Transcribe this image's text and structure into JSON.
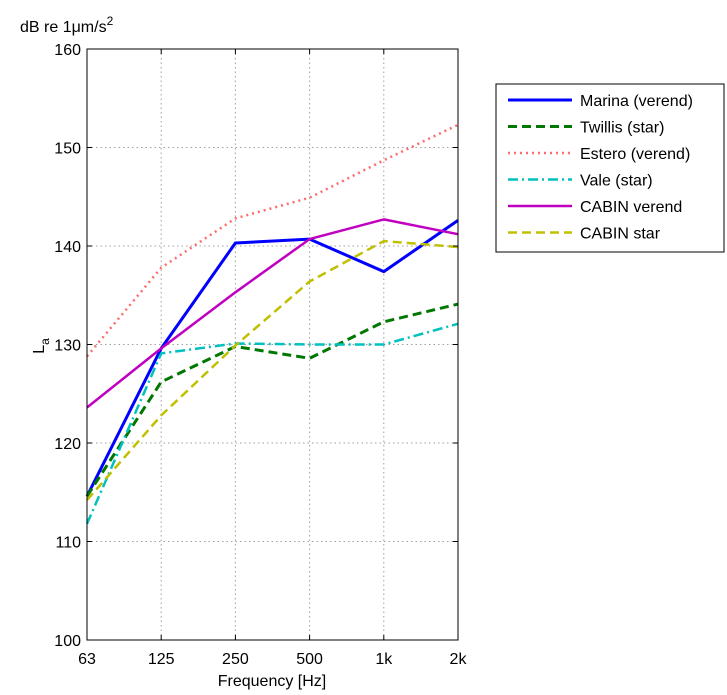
{
  "chart_data": {
    "type": "line",
    "title": "",
    "unit_label": "dB re 1μm/s",
    "unit_superscript": "2",
    "xlabel": "Frequency [Hz]",
    "ylabel_main": "L",
    "ylabel_sub": "a",
    "categories": [
      "63",
      "125",
      "250",
      "500",
      "1k",
      "2k"
    ],
    "ylim": [
      100,
      160
    ],
    "yticks": [
      100,
      110,
      120,
      130,
      140,
      150,
      160
    ],
    "grid": true,
    "legend_position": "outside-right",
    "series": [
      {
        "name": "Marina (verend)",
        "color": "#0000ff",
        "dash": "solid",
        "width": 3,
        "values": [
          114.6,
          129.6,
          140.3,
          140.7,
          137.4,
          142.6
        ]
      },
      {
        "name": "Twillis (star)",
        "color": "#007700",
        "dash": "dashed",
        "width": 3,
        "values": [
          114.6,
          126.2,
          129.8,
          128.6,
          132.3,
          134.1
        ]
      },
      {
        "name": "Estero (verend)",
        "color": "#ff6a6a",
        "dash": "dotted",
        "width": 2.5,
        "values": [
          128.8,
          137.8,
          142.8,
          144.9,
          148.7,
          152.3
        ]
      },
      {
        "name": "Vale (star)",
        "color": "#00c0c0",
        "dash": "dashdot",
        "width": 2.5,
        "values": [
          111.8,
          129.1,
          130.1,
          130.0,
          130.0,
          132.1
        ]
      },
      {
        "name": "CABIN verend",
        "color": "#c000c0",
        "dash": "solid",
        "width": 2.5,
        "values": [
          123.6,
          129.6,
          135.3,
          140.7,
          142.7,
          141.2
        ]
      },
      {
        "name": "CABIN star",
        "color": "#c0c000",
        "dash": "dashed",
        "width": 2.5,
        "values": [
          114.2,
          122.8,
          129.9,
          136.4,
          140.5,
          139.9
        ]
      }
    ]
  }
}
